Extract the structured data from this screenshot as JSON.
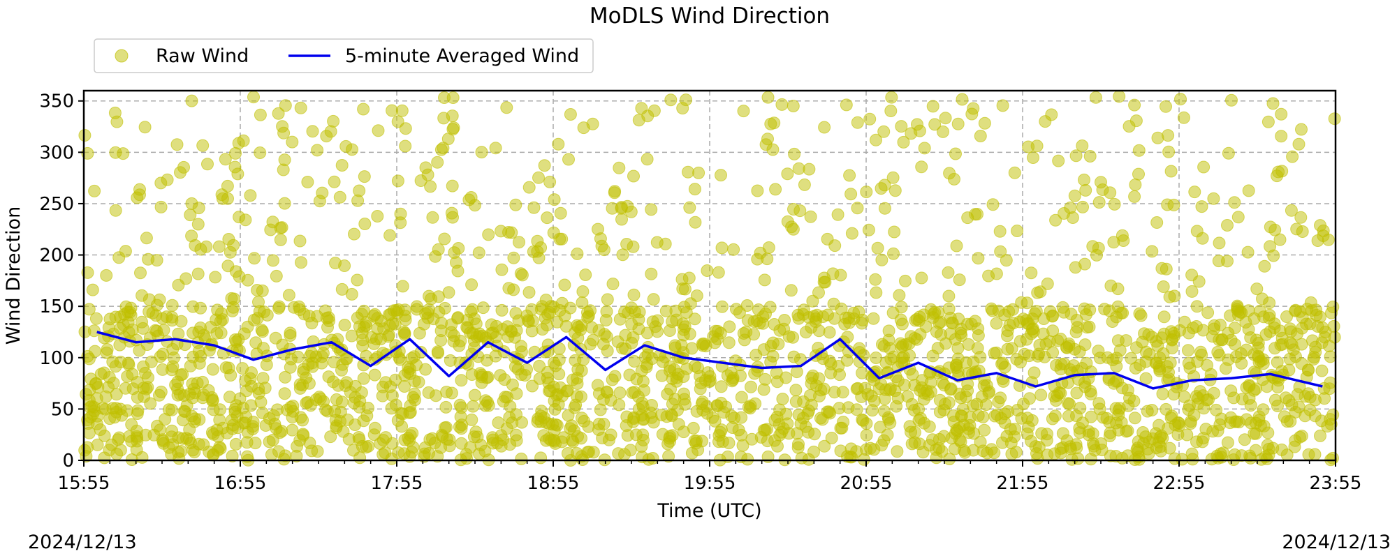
{
  "chart_data": {
    "type": "scatter",
    "title": "MoDLS Wind Direction",
    "xlabel": "Time (UTC)",
    "ylabel": "Wind Direction",
    "ylim": [
      0,
      360
    ],
    "yticks": [
      0,
      50,
      100,
      150,
      200,
      250,
      300,
      350
    ],
    "xlim": [
      "15:55",
      "23:55"
    ],
    "xticks": [
      "15:55",
      "16:55",
      "17:55",
      "18:55",
      "19:55",
      "20:55",
      "21:55",
      "22:55",
      "23:55"
    ],
    "grid": true,
    "legend_position": "top-left, above plot",
    "date_left": "2024/12/13",
    "date_right": "2024/12/13",
    "series": [
      {
        "name": "Raw Wind",
        "kind": "scatter",
        "color": "#bfbf00",
        "alpha": 0.5,
        "description_range": [
          0,
          360
        ],
        "core_band": [
          0,
          150
        ]
      },
      {
        "name": "5-minute Averaged Wind",
        "kind": "line",
        "color": "#0000ee",
        "x": [
          "16:00",
          "16:15",
          "16:30",
          "16:45",
          "17:00",
          "17:15",
          "17:30",
          "17:45",
          "18:00",
          "18:15",
          "18:30",
          "18:45",
          "19:00",
          "19:15",
          "19:30",
          "19:45",
          "20:00",
          "20:15",
          "20:30",
          "20:45",
          "21:00",
          "21:15",
          "21:30",
          "21:45",
          "22:00",
          "22:15",
          "22:30",
          "22:45",
          "23:00",
          "23:15",
          "23:30",
          "23:50"
        ],
        "values": [
          125,
          115,
          118,
          112,
          98,
          108,
          115,
          92,
          118,
          82,
          115,
          95,
          120,
          88,
          112,
          100,
          95,
          90,
          92,
          118,
          80,
          95,
          78,
          85,
          72,
          83,
          85,
          70,
          78,
          80,
          84,
          72
        ]
      }
    ]
  }
}
